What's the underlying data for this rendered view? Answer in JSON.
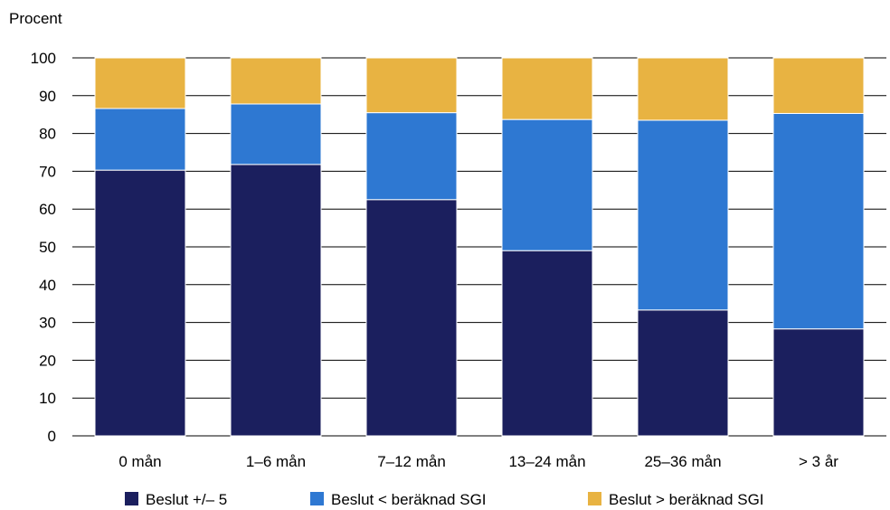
{
  "chart_data": {
    "type": "bar",
    "stacked": true,
    "ylabel": "Procent",
    "xlabel": "",
    "ylim": [
      0,
      100
    ],
    "yticks": [
      0,
      10,
      20,
      30,
      40,
      50,
      60,
      70,
      80,
      90,
      100
    ],
    "grid": true,
    "legend_position": "bottom",
    "categories": [
      "0 mån",
      "1–6 mån",
      "7–12 mån",
      "13–24 mån",
      "25–36 mån",
      "> 3 år"
    ],
    "series": [
      {
        "name": "Beslut +/– 5",
        "color": "#1b1f5e",
        "values": [
          70.3,
          71.8,
          62.5,
          49.0,
          33.3,
          28.3
        ]
      },
      {
        "name": "Beslut < beräknad SGI",
        "color": "#2e78d2",
        "values": [
          16.3,
          16.0,
          23.0,
          34.7,
          50.2,
          57.0
        ]
      },
      {
        "name": "Beslut > beräknad SGI",
        "color": "#e8b342",
        "values": [
          13.4,
          12.2,
          14.5,
          16.3,
          16.5,
          14.7
        ]
      }
    ]
  }
}
